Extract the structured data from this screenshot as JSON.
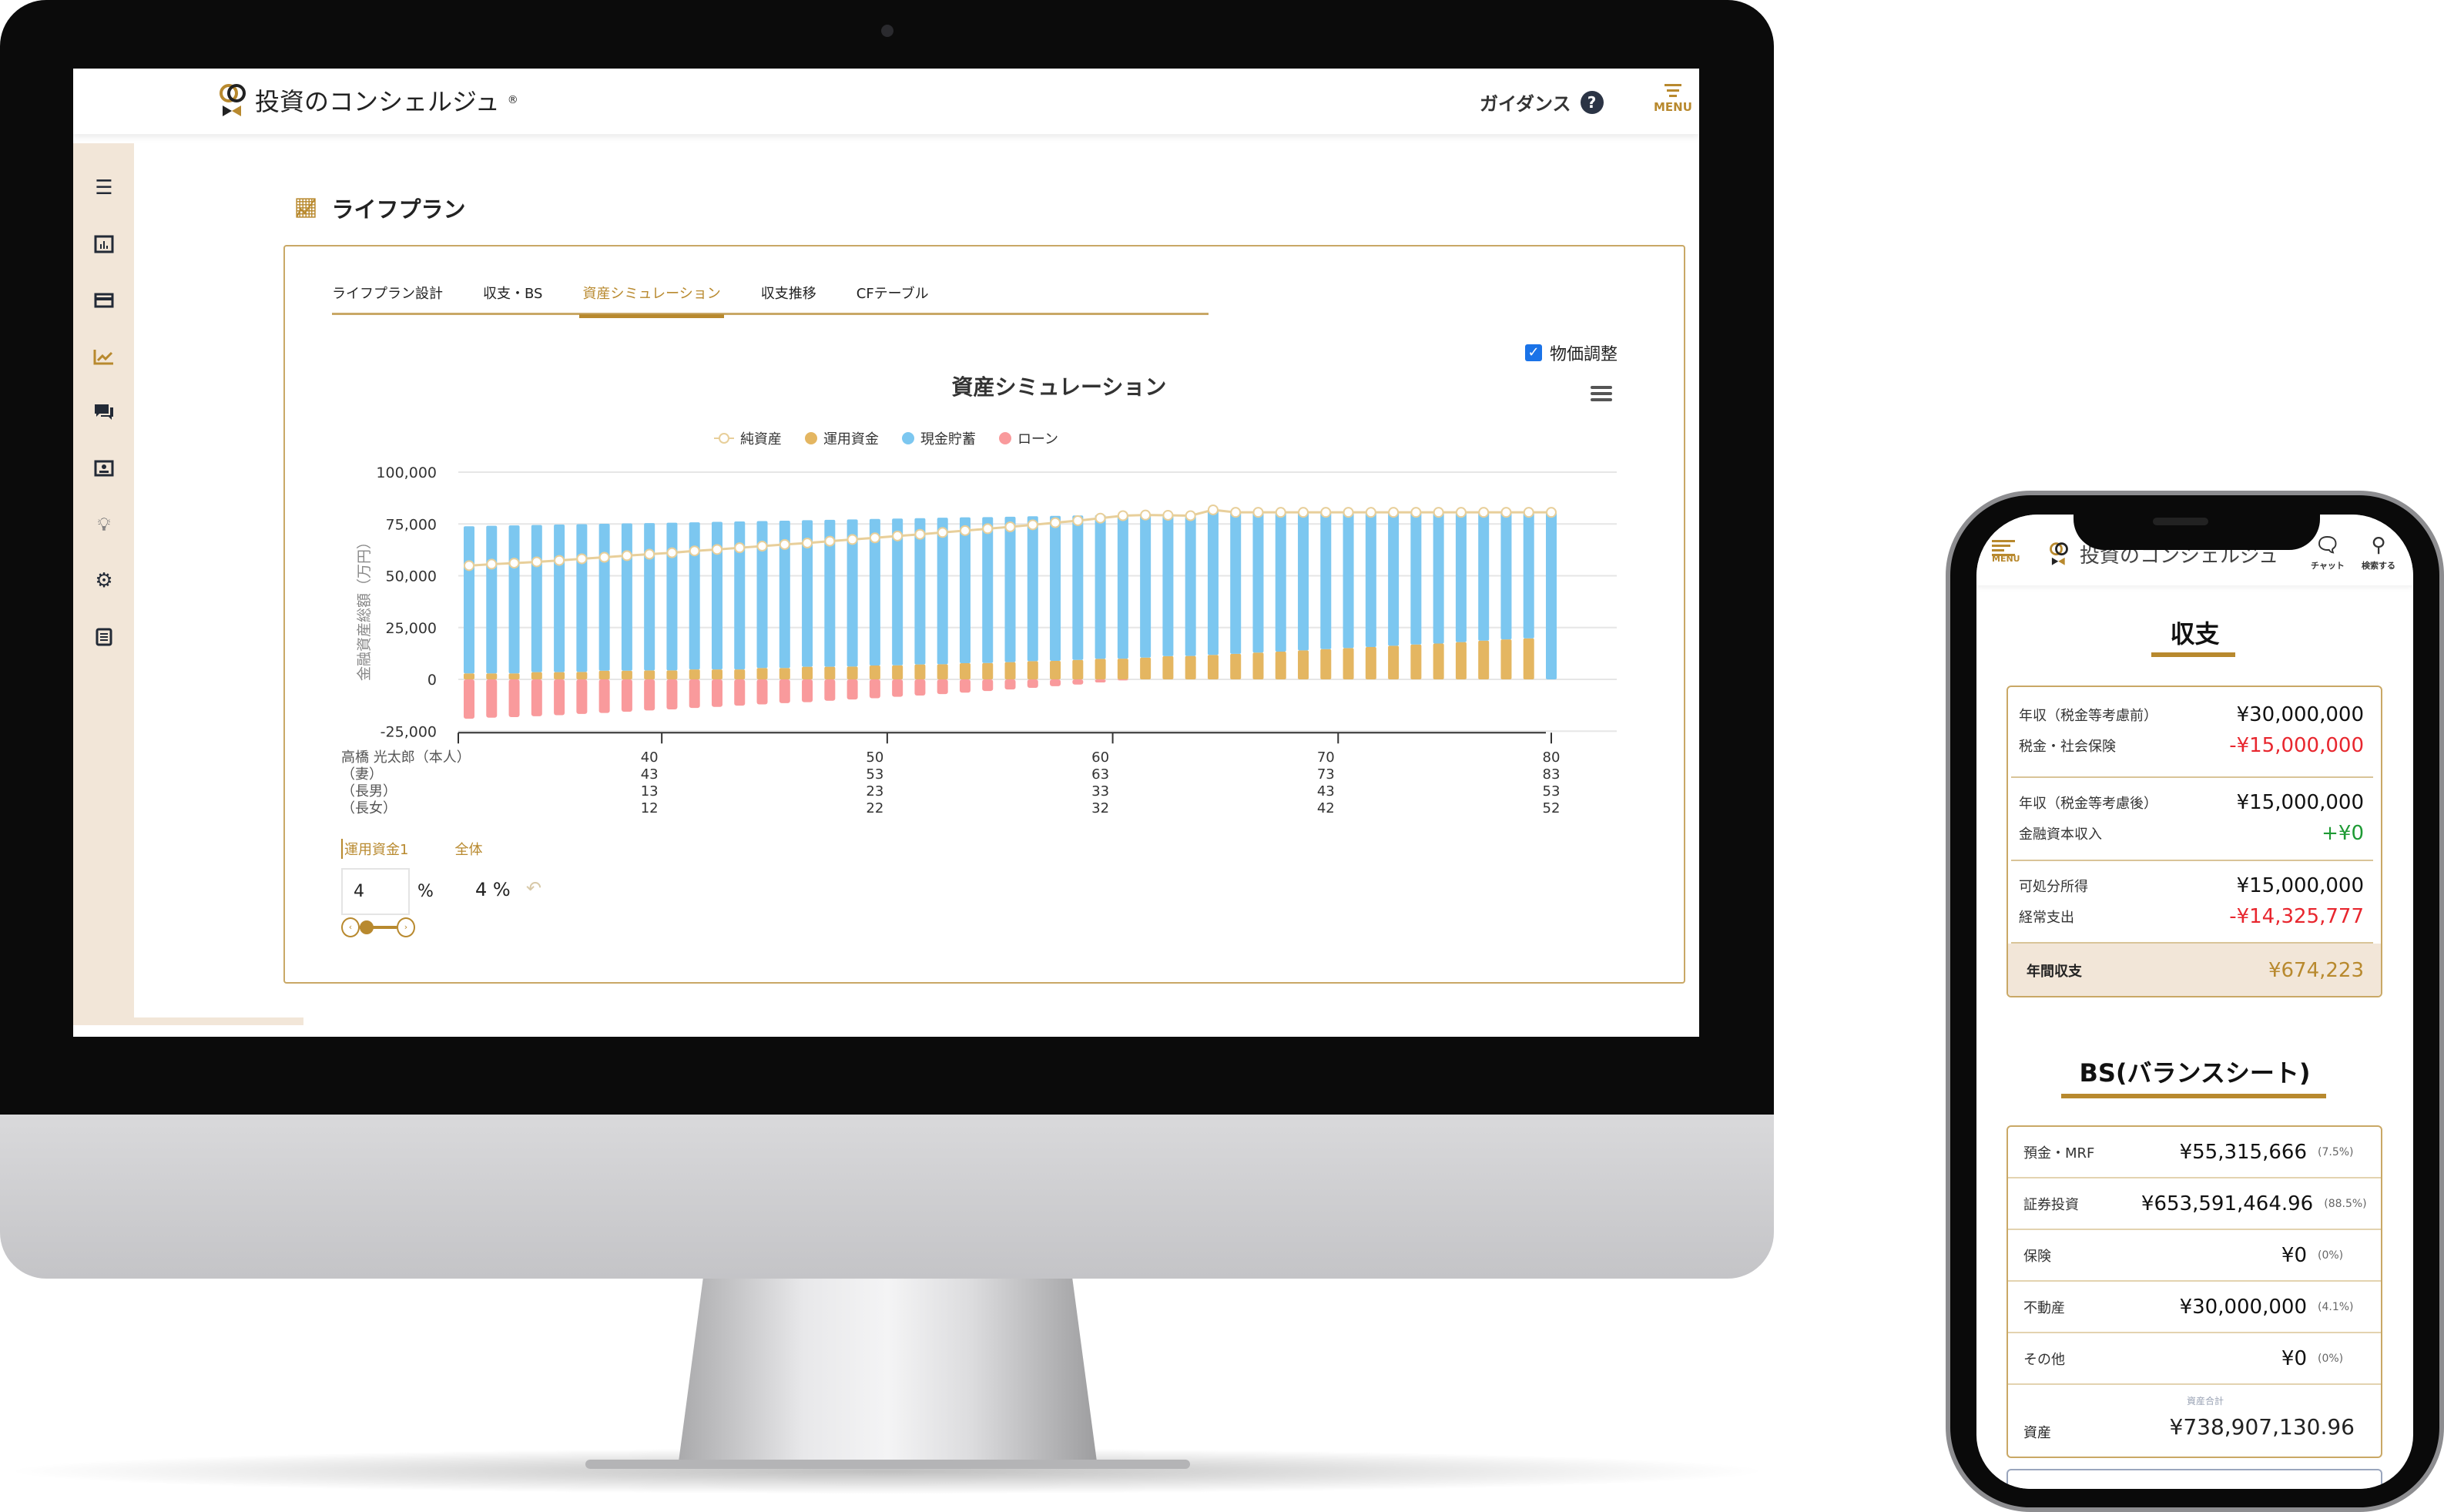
{
  "colors": {
    "accent": "#b8892e",
    "sidebar_bg": "#f2e6d8",
    "checkbox": "#1a73e8",
    "negative": "#e8262e",
    "positive": "#1e9a34"
  },
  "desktop": {
    "header": {
      "brand": "投資のコンシェルジュ",
      "registered": "®",
      "guidance": "ガイダンス",
      "guidance_icon": "question-circle-icon",
      "menu": "MENU"
    },
    "sidebar": {
      "items": [
        {
          "icon": "hamburger-icon",
          "active": false
        },
        {
          "icon": "bar-chart-icon",
          "active": false
        },
        {
          "icon": "credit-card-icon",
          "active": false
        },
        {
          "icon": "line-chart-icon",
          "active": true
        },
        {
          "icon": "chat-icon",
          "active": false
        },
        {
          "icon": "profile-card-icon",
          "active": false
        },
        {
          "icon": "lightbulb-icon",
          "active": false
        },
        {
          "icon": "gear-icon",
          "active": false
        },
        {
          "icon": "document-icon",
          "active": false
        }
      ]
    },
    "page_title": "ライフプラン",
    "tabs": [
      {
        "label": "ライフプラン設計"
      },
      {
        "label": "収支・BS"
      },
      {
        "label": "資産シミュレーション",
        "active": true
      },
      {
        "label": "収支推移"
      },
      {
        "label": "CFテーブル"
      }
    ],
    "price_adjust": {
      "label": "物価調整",
      "checked": true
    },
    "controls": {
      "tabs": [
        "運用資金1",
        "全体"
      ],
      "input_value": "4",
      "unit": "%",
      "display": "4 %"
    }
  },
  "chart_data": {
    "type": "bar",
    "stacked": true,
    "title": "資産シミュレーション",
    "ylabel": "金融資産総額（万円）",
    "ylim": [
      -25000,
      100000
    ],
    "yticks": [
      "100,000",
      "75,000",
      "50,000",
      "25,000",
      "0",
      "-25,000"
    ],
    "ytick_values": [
      100000,
      75000,
      50000,
      25000,
      0,
      -25000
    ],
    "grid": true,
    "legend_position": "top-center",
    "x": [
      32,
      33,
      34,
      35,
      36,
      37,
      38,
      39,
      40,
      41,
      42,
      43,
      44,
      45,
      46,
      47,
      48,
      49,
      50,
      51,
      52,
      53,
      54,
      55,
      56,
      57,
      58,
      59,
      60,
      61,
      62,
      63,
      64,
      65,
      66,
      67,
      68,
      69,
      70,
      71,
      72,
      73,
      74,
      75,
      76,
      77,
      78,
      79,
      80
    ],
    "x_label_rows": [
      {
        "label": "高橋 光太郎（本人）",
        "values": [
          "40",
          "50",
          "60",
          "70",
          "80"
        ]
      },
      {
        "label": "（妻）",
        "values": [
          "43",
          "53",
          "63",
          "73",
          "83"
        ]
      },
      {
        "label": "（長男）",
        "values": [
          "13",
          "23",
          "33",
          "43",
          "53"
        ]
      },
      {
        "label": "（長女）",
        "values": [
          "12",
          "22",
          "32",
          "42",
          "52"
        ]
      }
    ],
    "x_label_ages": [
      40,
      50,
      60,
      70,
      80
    ],
    "series": [
      {
        "name": "運用資金",
        "type": "bar",
        "color": "#e4b661",
        "values": [
          2900,
          2900,
          2900,
          3500,
          3500,
          3600,
          4200,
          4200,
          4300,
          4300,
          4800,
          4800,
          4800,
          5500,
          5500,
          6100,
          6100,
          6200,
          6700,
          6800,
          7200,
          7300,
          7800,
          7900,
          8300,
          8800,
          8900,
          9400,
          9900,
          10000,
          10500,
          11200,
          11300,
          11800,
          12300,
          12900,
          13400,
          14000,
          14600,
          15100,
          15600,
          16200,
          16800,
          17300,
          18000,
          18700,
          19300,
          19800,
          0
        ]
      },
      {
        "name": "現金貯蓄",
        "type": "bar",
        "color": "#7cc7f0",
        "values": [
          71000,
          71200,
          71400,
          71000,
          71200,
          71300,
          70900,
          71100,
          71100,
          71300,
          71000,
          71200,
          71400,
          70900,
          71100,
          70700,
          70900,
          71000,
          70700,
          70800,
          70600,
          70700,
          70400,
          70400,
          70200,
          69900,
          70000,
          69700,
          69400,
          69500,
          68800,
          68000,
          67700,
          70000,
          68300,
          67700,
          67200,
          66600,
          66000,
          65500,
          65000,
          64400,
          63800,
          63300,
          62600,
          61900,
          61300,
          60800,
          80600
        ]
      },
      {
        "name": "ローン",
        "type": "bar",
        "color": "#f99a9c",
        "values": [
          -19000,
          -18500,
          -18200,
          -17800,
          -17300,
          -16700,
          -16200,
          -15600,
          -15000,
          -14500,
          -13800,
          -13300,
          -12700,
          -12100,
          -11500,
          -11000,
          -10300,
          -9700,
          -9100,
          -8400,
          -7800,
          -7100,
          -6400,
          -5600,
          -4900,
          -4100,
          -3300,
          -2500,
          -1500,
          -500,
          0,
          0,
          0,
          0,
          0,
          0,
          0,
          0,
          0,
          0,
          0,
          0,
          0,
          0,
          0,
          0,
          0,
          0,
          0
        ]
      },
      {
        "name": "純資産",
        "type": "line",
        "color": "#e8cf9a",
        "values": [
          54900,
          55600,
          56100,
          56700,
          57400,
          58200,
          58900,
          59700,
          60400,
          61100,
          62000,
          62700,
          63500,
          64300,
          65100,
          65800,
          66700,
          67500,
          68300,
          69200,
          70000,
          70900,
          71800,
          72700,
          73600,
          74600,
          75600,
          76600,
          77800,
          79000,
          79300,
          79200,
          79000,
          81800,
          80600,
          80600,
          80600,
          80600,
          80600,
          80600,
          80600,
          80600,
          80600,
          80600,
          80600,
          80600,
          80600,
          80600,
          80600
        ]
      }
    ],
    "legend_order": [
      "純資産",
      "運用資金",
      "現金貯蓄",
      "ローン"
    ]
  },
  "phone": {
    "header": {
      "menu": "MENU",
      "brand": "投資のコンシェルジュ",
      "chat": "チャット",
      "search": "検索する"
    },
    "income": {
      "title": "収支",
      "groups": [
        [
          {
            "label": "年収（税金等考慮前）",
            "value": "¥30,000,000",
            "tone": "normal"
          },
          {
            "label": "税金・社会保険",
            "value": "-¥15,000,000",
            "tone": "negative"
          }
        ],
        [
          {
            "label": "年収（税金等考慮後）",
            "value": "¥15,000,000",
            "tone": "normal"
          },
          {
            "label": "金融資本収入",
            "value": "+¥0",
            "tone": "positive"
          }
        ],
        [
          {
            "label": "可処分所得",
            "value": "¥15,000,000",
            "tone": "normal"
          },
          {
            "label": "経常支出",
            "value": "-¥14,325,777",
            "tone": "negative"
          }
        ]
      ],
      "total": {
        "label": "年間収支",
        "value": "¥674,223"
      }
    },
    "bs": {
      "title": "BS(バランスシート)",
      "rows": [
        {
          "label": "預金・MRF",
          "value": "¥55,315,666",
          "pct": "(7.5%)"
        },
        {
          "label": "証券投資",
          "value": "¥653,591,464.96",
          "pct": "(88.5%)"
        },
        {
          "label": "保険",
          "value": "¥0",
          "pct": "(0%)"
        },
        {
          "label": "不動産",
          "value": "¥30,000,000",
          "pct": "(4.1%)"
        },
        {
          "label": "その他",
          "value": "¥0",
          "pct": "(0%)"
        }
      ],
      "total_caption": "資産合計",
      "total_label": "資産",
      "total_value": "¥738,907,130.96"
    }
  }
}
